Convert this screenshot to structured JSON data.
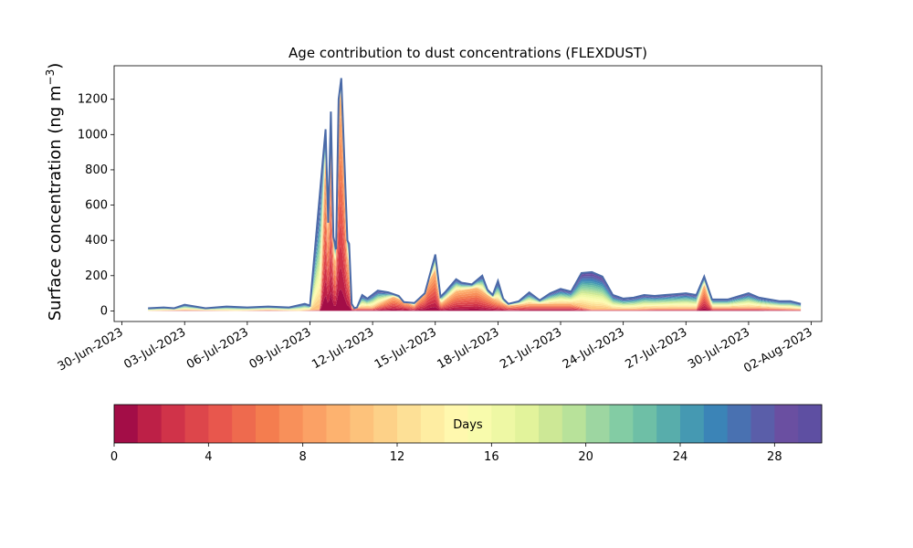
{
  "chart_data": {
    "type": "area",
    "title": "Age contribution to dust concentrations (FLEXDUST)",
    "ylabel": "Surface concentration (ng m",
    "ylabel_sup": "−3",
    "ylabel_close": ")",
    "ylim": [
      -60,
      1390
    ],
    "yticks": [
      0,
      200,
      400,
      600,
      800,
      1000,
      1200
    ],
    "xlim": [
      "2023-06-29T15:00",
      "2023-08-02T12:00"
    ],
    "xtick_labels": [
      "30-Jun-2023",
      "03-Jul-2023",
      "06-Jul-2023",
      "09-Jul-2023",
      "12-Jul-2023",
      "15-Jul-2023",
      "18-Jul-2023",
      "21-Jul-2023",
      "24-Jul-2023",
      "27-Jul-2023",
      "30-Jul-2023",
      "02-Aug-2023"
    ],
    "xtick_dates": [
      "2023-06-30",
      "2023-07-03",
      "2023-07-06",
      "2023-07-09",
      "2023-07-12",
      "2023-07-15",
      "2023-07-18",
      "2023-07-21",
      "2023-07-24",
      "2023-07-27",
      "2023-07-30",
      "2023-08-02"
    ],
    "total": {
      "x": [
        "2023-07-01T06:00",
        "2023-07-02T00:00",
        "2023-07-02T12:00",
        "2023-07-03T00:00",
        "2023-07-04T00:00",
        "2023-07-05T00:00",
        "2023-07-06T00:00",
        "2023-07-07T00:00",
        "2023-07-08T00:00",
        "2023-07-08T18:00",
        "2023-07-09T00:00",
        "2023-07-09T18:00",
        "2023-07-09T21:00",
        "2023-07-10T00:00",
        "2023-07-10T03:00",
        "2023-07-10T06:00",
        "2023-07-10T09:00",
        "2023-07-10T12:00",
        "2023-07-10T16:00",
        "2023-07-10T19:00",
        "2023-07-10T21:00",
        "2023-07-11T00:00",
        "2023-07-11T03:00",
        "2023-07-11T06:00",
        "2023-07-11T09:00",
        "2023-07-11T12:00",
        "2023-07-11T18:00",
        "2023-07-12T06:00",
        "2023-07-12T18:00",
        "2023-07-13T06:00",
        "2023-07-13T12:00",
        "2023-07-14T00:00",
        "2023-07-14T12:00",
        "2023-07-15T00:00",
        "2023-07-15T06:00",
        "2023-07-15T12:00",
        "2023-07-16T00:00",
        "2023-07-16T06:00",
        "2023-07-16T18:00",
        "2023-07-17T06:00",
        "2023-07-17T12:00",
        "2023-07-17T18:00",
        "2023-07-18T00:00",
        "2023-07-18T06:00",
        "2023-07-18T12:00",
        "2023-07-19T00:00",
        "2023-07-19T12:00",
        "2023-07-20T00:00",
        "2023-07-20T12:00",
        "2023-07-21T00:00",
        "2023-07-21T12:00",
        "2023-07-22T00:00",
        "2023-07-22T12:00",
        "2023-07-23T00:00",
        "2023-07-23T12:00",
        "2023-07-24T00:00",
        "2023-07-24T12:00",
        "2023-07-25T00:00",
        "2023-07-25T12:00",
        "2023-07-26T00:00",
        "2023-07-26T12:00",
        "2023-07-27T00:00",
        "2023-07-27T12:00",
        "2023-07-27T21:00",
        "2023-07-28T06:00",
        "2023-07-29T00:00",
        "2023-07-30T00:00",
        "2023-07-30T12:00",
        "2023-07-31T00:00",
        "2023-07-31T12:00",
        "2023-08-01T00:00",
        "2023-08-01T12:00"
      ],
      "y": [
        15,
        20,
        15,
        35,
        15,
        25,
        20,
        25,
        20,
        40,
        30,
        1030,
        500,
        1130,
        420,
        350,
        1200,
        1320,
        800,
        400,
        380,
        40,
        15,
        20,
        55,
        90,
        70,
        115,
        105,
        85,
        50,
        45,
        100,
        320,
        80,
        110,
        180,
        160,
        150,
        200,
        120,
        90,
        170,
        70,
        40,
        55,
        105,
        60,
        100,
        125,
        110,
        215,
        220,
        195,
        90,
        70,
        75,
        90,
        85,
        90,
        95,
        100,
        90,
        195,
        65,
        65,
        100,
        75,
        65,
        55,
        55,
        40
      ]
    },
    "fresh": {
      "x": [
        "2023-07-01T06:00",
        "2023-07-03T00:00",
        "2023-07-05T12:00",
        "2023-07-07T00:00",
        "2023-07-08T12:00",
        "2023-07-09T12:00",
        "2023-07-09T18:00",
        "2023-07-09T21:00",
        "2023-07-10T00:00",
        "2023-07-10T03:00",
        "2023-07-10T06:00",
        "2023-07-10T09:00",
        "2023-07-10T12:00",
        "2023-07-10T16:00",
        "2023-07-10T19:00",
        "2023-07-10T21:00",
        "2023-07-11T00:00",
        "2023-07-12T00:00",
        "2023-07-13T00:00",
        "2023-07-14T00:00",
        "2023-07-15T00:00",
        "2023-07-15T06:00",
        "2023-07-16T00:00",
        "2023-07-17T00:00",
        "2023-07-17T18:00",
        "2023-07-18T12:00",
        "2023-07-19T12:00",
        "2023-07-20T12:00",
        "2023-07-21T12:00",
        "2023-07-22T12:00",
        "2023-07-23T12:00",
        "2023-07-24T12:00",
        "2023-07-25T12:00",
        "2023-07-26T12:00",
        "2023-07-27T12:00",
        "2023-07-27T21:00",
        "2023-07-28T06:00",
        "2023-07-29T12:00",
        "2023-07-30T12:00",
        "2023-08-01T12:00"
      ],
      "y": [
        0,
        5,
        0,
        5,
        0,
        10,
        950,
        300,
        1080,
        300,
        280,
        1150,
        1260,
        700,
        300,
        260,
        20,
        20,
        80,
        30,
        230,
        40,
        110,
        130,
        70,
        30,
        40,
        40,
        40,
        10,
        10,
        10,
        15,
        15,
        15,
        150,
        20,
        20,
        20,
        10
      ]
    },
    "colorbar": {
      "label": "Days",
      "range": [
        0,
        30
      ],
      "ticks": [
        0,
        4,
        8,
        12,
        16,
        20,
        24,
        28
      ],
      "colors": [
        "#a30d47",
        "#bd2047",
        "#d03349",
        "#dd464b",
        "#e8574d",
        "#ee6a4e",
        "#f47d4f",
        "#f8905a",
        "#fba165",
        "#fdb26f",
        "#fdc27b",
        "#fdd188",
        "#fde096",
        "#feeda2",
        "#fff8ae",
        "#f8fbac",
        "#eef8a4",
        "#e2f39b",
        "#cde896",
        "#b8e29a",
        "#9dd6a1",
        "#83cca4",
        "#6ebfa6",
        "#58adab",
        "#4599b2",
        "#3b84b7",
        "#4971b1",
        "#5a5ea9",
        "#6a4fa1",
        "#5e4fa2"
      ]
    },
    "line_color": "#4a6aa8",
    "legend": "none",
    "grid": false
  }
}
